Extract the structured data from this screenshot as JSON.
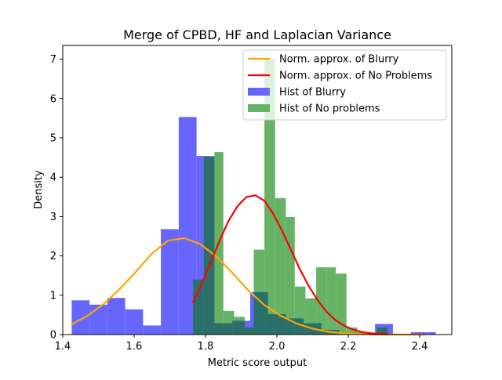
{
  "chart_data": {
    "type": "bar",
    "title": "Merge of CPBD, HF and Laplacian Variance",
    "xlabel": "Metric score output",
    "ylabel": "Density",
    "xlim": [
      1.4,
      2.49
    ],
    "ylim": [
      0,
      7.35
    ],
    "x_ticks": [
      {
        "value": 1.4,
        "label": "1.4"
      },
      {
        "value": 1.6,
        "label": "1.6"
      },
      {
        "value": 1.8,
        "label": "1.8"
      },
      {
        "value": 2.0,
        "label": "2.0"
      },
      {
        "value": 2.2,
        "label": "2.2"
      },
      {
        "value": 2.4,
        "label": "2.4"
      }
    ],
    "y_ticks": [
      {
        "value": 0,
        "label": "0"
      },
      {
        "value": 1,
        "label": "1"
      },
      {
        "value": 2,
        "label": "2"
      },
      {
        "value": 3,
        "label": "3"
      },
      {
        "value": 4,
        "label": "4"
      },
      {
        "value": 5,
        "label": "5"
      },
      {
        "value": 6,
        "label": "6"
      },
      {
        "value": 7,
        "label": "7"
      }
    ],
    "grid": false,
    "legend_position": "top-right",
    "histograms": [
      {
        "name": "Hist of Blurry",
        "color": "#6666ff",
        "bins": [
          {
            "x0": 1.425,
            "x1": 1.475,
            "value": 0.87
          },
          {
            "x0": 1.475,
            "x1": 1.525,
            "value": 0.76
          },
          {
            "x0": 1.525,
            "x1": 1.575,
            "value": 0.93
          },
          {
            "x0": 1.575,
            "x1": 1.625,
            "value": 0.64
          },
          {
            "x0": 1.625,
            "x1": 1.675,
            "value": 0.23
          },
          {
            "x0": 1.675,
            "x1": 1.725,
            "value": 2.68
          },
          {
            "x0": 1.725,
            "x1": 1.775,
            "value": 5.53
          },
          {
            "x0": 1.775,
            "x1": 1.825,
            "value": 4.54
          },
          {
            "x0": 1.825,
            "x1": 1.875,
            "value": 0.29
          },
          {
            "x0": 1.875,
            "x1": 1.925,
            "value": 0.35
          },
          {
            "x0": 1.925,
            "x1": 1.975,
            "value": 1.08
          },
          {
            "x0": 1.975,
            "x1": 2.025,
            "value": 0.52
          },
          {
            "x0": 2.025,
            "x1": 2.075,
            "value": 0.41
          },
          {
            "x0": 2.075,
            "x1": 2.125,
            "value": 0.29
          },
          {
            "x0": 2.125,
            "x1": 2.175,
            "value": 0.12
          },
          {
            "x0": 2.275,
            "x1": 2.325,
            "value": 0.27
          },
          {
            "x0": 2.375,
            "x1": 2.425,
            "value": 0.06
          },
          {
            "x0": 2.425,
            "x1": 2.445,
            "value": 0.06
          }
        ]
      },
      {
        "name": "Hist of No problems",
        "color": "#66b366",
        "bins": [
          {
            "x0": 1.765,
            "x1": 1.795,
            "value": 1.4
          },
          {
            "x0": 1.795,
            "x1": 1.825,
            "value": 4.52
          },
          {
            "x0": 1.825,
            "x1": 1.85,
            "value": 4.64
          },
          {
            "x0": 1.85,
            "x1": 1.88,
            "value": 0.6
          },
          {
            "x0": 1.88,
            "x1": 1.91,
            "value": 0.45
          },
          {
            "x0": 1.91,
            "x1": 1.935,
            "value": 0.18
          },
          {
            "x0": 1.935,
            "x1": 1.965,
            "value": 2.16
          },
          {
            "x0": 1.965,
            "x1": 1.995,
            "value": 7.0
          },
          {
            "x0": 1.995,
            "x1": 2.025,
            "value": 3.47
          },
          {
            "x0": 2.025,
            "x1": 2.05,
            "value": 2.99
          },
          {
            "x0": 2.05,
            "x1": 2.08,
            "value": 1.22
          },
          {
            "x0": 2.08,
            "x1": 2.11,
            "value": 0.92
          },
          {
            "x0": 2.11,
            "x1": 2.14,
            "value": 1.71
          },
          {
            "x0": 2.14,
            "x1": 2.165,
            "value": 1.71
          },
          {
            "x0": 2.165,
            "x1": 2.195,
            "value": 1.55
          },
          {
            "x0": 2.195,
            "x1": 2.225,
            "value": 0.18
          },
          {
            "x0": 2.225,
            "x1": 2.25,
            "value": 0.06
          },
          {
            "x0": 2.28,
            "x1": 2.31,
            "value": 0.18
          }
        ]
      }
    ],
    "series": [
      {
        "name": "Norm. approx. of Blurry",
        "color": "#ffa500",
        "x": [
          1.425,
          1.47,
          1.515,
          1.56,
          1.605,
          1.65,
          1.695,
          1.74,
          1.785,
          1.83,
          1.875,
          1.92,
          1.965,
          2.01,
          2.055,
          2.1,
          2.145,
          2.19,
          2.235,
          2.28,
          2.325,
          2.37,
          2.415
        ],
        "y": [
          0.26,
          0.48,
          0.78,
          1.16,
          1.6,
          2.06,
          2.39,
          2.45,
          2.3,
          1.99,
          1.57,
          1.12,
          0.75,
          0.48,
          0.28,
          0.15,
          0.07,
          0.03,
          0.01,
          0.0,
          0.0,
          0.0,
          0.0
        ]
      },
      {
        "name": "Norm. approx. of No Problems",
        "color": "#ff0000",
        "x": [
          1.765,
          1.79,
          1.815,
          1.84,
          1.865,
          1.89,
          1.915,
          1.94,
          1.965,
          1.99,
          2.015,
          2.04,
          2.065,
          2.09,
          2.115,
          2.14,
          2.165,
          2.19,
          2.215,
          2.24,
          2.265,
          2.29,
          2.31
        ],
        "y": [
          0.82,
          1.3,
          1.84,
          2.4,
          2.9,
          3.27,
          3.5,
          3.54,
          3.4,
          3.07,
          2.63,
          2.14,
          1.65,
          1.22,
          0.86,
          0.57,
          0.36,
          0.22,
          0.12,
          0.06,
          0.03,
          0.02,
          0.01
        ]
      }
    ]
  }
}
